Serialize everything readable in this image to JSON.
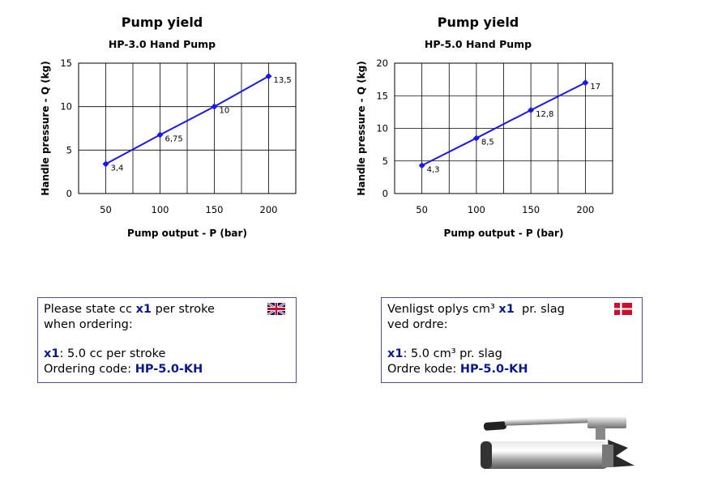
{
  "chart_data": [
    {
      "type": "line",
      "title": "Pump yield",
      "subtitle": "HP-3.0 Hand Pump",
      "xlabel": "Pump output - P (bar)",
      "ylabel": "Handle pressure - Q (kg)",
      "xlim": [
        25,
        225
      ],
      "ylim": [
        0,
        15
      ],
      "xticks": [
        "50",
        "100",
        "150",
        "200"
      ],
      "yticks": [
        "0",
        "5",
        "10",
        "15"
      ],
      "grid": true,
      "x": [
        50,
        100,
        150,
        200
      ],
      "values": [
        3.4,
        6.75,
        10,
        13.5
      ],
      "labels": [
        "3,4",
        "6,75",
        "10",
        "13,5"
      ],
      "color": "#1a1ae6"
    },
    {
      "type": "line",
      "title": "Pump yield",
      "subtitle": "HP-5.0 Hand Pump",
      "xlabel": "Pump output - P (bar)",
      "ylabel": "Handle pressure - Q (kg)",
      "xlim": [
        25,
        225
      ],
      "ylim": [
        0,
        20
      ],
      "xticks": [
        "50",
        "100",
        "150",
        "200"
      ],
      "yticks": [
        "0",
        "5",
        "10",
        "15",
        "20"
      ],
      "grid": true,
      "x": [
        50,
        100,
        150,
        200
      ],
      "values": [
        4.3,
        8.5,
        12.8,
        17
      ],
      "labels": [
        "4,3",
        "8,5",
        "12,8",
        "17"
      ],
      "color": "#1a1ae6"
    }
  ],
  "box_en": {
    "l1_pre": "Please state cc ",
    "l1_x": "x1",
    "l1_post": " per stroke",
    "l2": "when ordering:",
    "l3_x": "x1",
    "l3_post": ": 5.0 cc per stroke",
    "l4_pre": "Ordering code: ",
    "l4_code": "HP-5.0-KH",
    "flag_icon": "uk-flag-icon"
  },
  "box_dk": {
    "l1_pre": "Venligst oplys cm³ ",
    "l1_x": "x1",
    "l1_post": "  pr. slag",
    "l2": "ved ordre:",
    "l3_x": "x1",
    "l3_post": ": 5.0 cm³ pr. slag",
    "l4_pre": "Ordre kode: ",
    "l4_code": "HP-5.0-KH",
    "flag_icon": "denmark-flag-icon"
  },
  "colors": {
    "accent": "#0a1a8c",
    "box_border": "#4a4f9a",
    "line": "#1a1ae6"
  }
}
